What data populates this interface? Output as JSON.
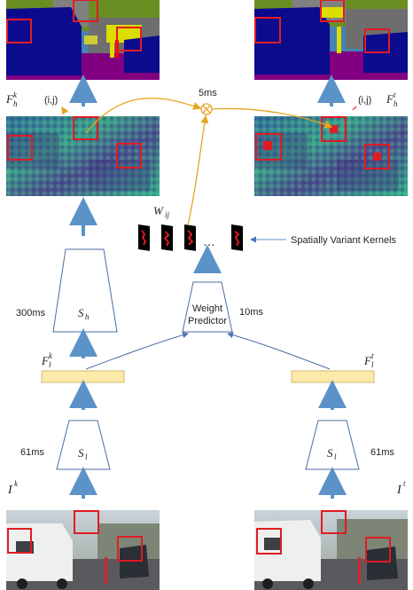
{
  "labels": {
    "feat_h_key": "F",
    "feat_h_key_sub": "h",
    "feat_h_key_sup": "k",
    "feat_h_cur": "F",
    "feat_h_cur_sub": "h",
    "feat_h_cur_sup": "t",
    "feat_l_key": "F",
    "feat_l_key_sub": "l",
    "feat_l_key_sup": "k",
    "feat_l_cur": "F",
    "feat_l_cur_sub": "l",
    "feat_l_cur_sup": "t",
    "img_key": "I",
    "img_key_sup": "k",
    "img_cur": "I",
    "img_cur_sup": "t",
    "pos_left": "(i,j)",
    "pos_right": "(i,j)",
    "weights": "W",
    "weights_sub": "ij",
    "dots": "…",
    "spatial_kernels": "Spatially Variant Kernels",
    "weight_predictor_line1": "Weight",
    "weight_predictor_line2": "Predictor",
    "sh_name": "S",
    "sh_sub": "h",
    "sl_left_name": "S",
    "sl_left_sub": "l",
    "sl_right_name": "S",
    "sl_right_sub": "l"
  },
  "timings": {
    "combine": "5ms",
    "sh": "300ms",
    "weight_predictor": "10ms",
    "sl_left": "61ms",
    "sl_right": "61ms"
  },
  "colors": {
    "arrow_blue": "#5b93c9",
    "kernel_arrow": "#e6a520",
    "highlight_red": "#e11b22",
    "feature_bar": "#fde9a9",
    "segmentation_sky": "#4682b4",
    "segmentation_car": "#0b0b8e",
    "feature_map_base": "#3b8f8a"
  },
  "icons": {
    "combine_op": "circled-times-icon",
    "kernel_tile": "kernel-tile-icon"
  }
}
